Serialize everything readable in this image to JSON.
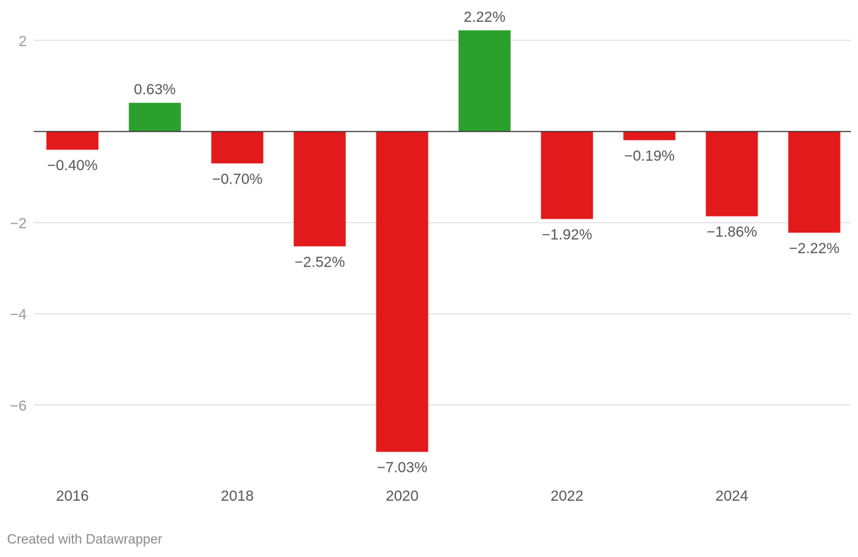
{
  "chart_data": {
    "type": "bar",
    "categories": [
      "2016",
      "2017",
      "2018",
      "2019",
      "2020",
      "2021",
      "2022",
      "2023",
      "2024",
      "2025"
    ],
    "values": [
      -0.4,
      0.63,
      -0.7,
      -2.52,
      -7.03,
      2.22,
      -1.92,
      -0.19,
      -1.86,
      -2.22
    ],
    "value_labels": [
      "−0.40%",
      "0.63%",
      "−0.70%",
      "−2.52%",
      "−7.03%",
      "2.22%",
      "−1.92%",
      "−0.19%",
      "−1.86%",
      "−2.22%"
    ],
    "x_tick_labels": [
      "2016",
      "",
      "2018",
      "",
      "2020",
      "",
      "2022",
      "",
      "2024",
      ""
    ],
    "y_ticks": [
      2,
      -2,
      -4,
      -6
    ],
    "y_tick_labels": [
      "2",
      "−2",
      "−4",
      "−6"
    ],
    "ylim": [
      -7.9,
      2.6
    ],
    "grid": true,
    "colors": {
      "positive": "#2ca02c",
      "negative": "#e31a1c",
      "gridline": "#e0e0e0",
      "zero_line": "#333333"
    },
    "title": "",
    "xlabel": "",
    "ylabel": ""
  },
  "footer": {
    "credit": "Created with Datawrapper"
  }
}
